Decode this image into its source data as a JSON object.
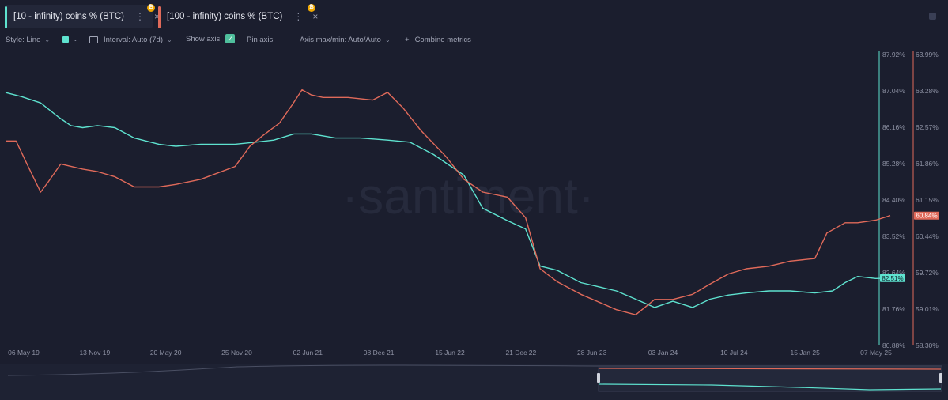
{
  "tabs": [
    {
      "label": "[10 - infinity) coins % (BTC)",
      "color": "#5ee2cf",
      "badge": "₿"
    },
    {
      "label": "[100 - infinity) coins % (BTC)",
      "color": "#e06a5a",
      "badge": "₿"
    }
  ],
  "tab_menu_icon": "⋮",
  "tab_close_icon": "×",
  "toolbar": {
    "style": "Style: Line",
    "interval": "Interval: Auto (7d)",
    "show_axis": "Show axis",
    "pin_axis": "Pin axis",
    "axis_maxmin": "Axis max/min: Auto/Auto",
    "combine": "Combine metrics",
    "check_mark": "✓",
    "plus": "+",
    "chevron": "⌄"
  },
  "watermark": "·santiment·",
  "colors": {
    "teal": "#5ee2cf",
    "red": "#e06a5a",
    "background": "#1b1e2e"
  },
  "chart_data": {
    "type": "line",
    "x_ticks": [
      "06 May 19",
      "13 Nov 19",
      "20 May 20",
      "25 Nov 20",
      "02 Jun 21",
      "08 Dec 21",
      "15 Jun 22",
      "21 Dec 22",
      "28 Jun 23",
      "03 Jan 24",
      "10 Jul 24",
      "15 Jan 25",
      "07 May 25"
    ],
    "left_axis": {
      "ticks": [
        "87.92%",
        "87.04%",
        "86.16%",
        "85.28%",
        "84.40%",
        "83.52%",
        "82.64%",
        "81.76%",
        "80.88%"
      ],
      "ylim": [
        80.88,
        87.92
      ]
    },
    "right_axis": {
      "ticks": [
        "63.99%",
        "63.28%",
        "62.57%",
        "61.86%",
        "61.15%",
        "60.44%",
        "59.72%",
        "59.01%",
        "58.30%"
      ],
      "ylim": [
        58.3,
        63.99
      ]
    },
    "series": [
      {
        "name": "[10 - infinity) coins % (BTC)",
        "color": "#5ee2cf",
        "axis": "left",
        "current_label": "82.51%",
        "x": [
          "2019-05-06",
          "2019-06-15",
          "2019-08-01",
          "2019-09-15",
          "2019-10-15",
          "2019-11-13",
          "2019-12-20",
          "2020-02-01",
          "2020-03-20",
          "2020-05-20",
          "2020-07-01",
          "2020-09-01",
          "2020-11-25",
          "2021-01-15",
          "2021-03-01",
          "2021-04-20",
          "2021-06-02",
          "2021-08-01",
          "2021-10-01",
          "2021-12-08",
          "2022-02-01",
          "2022-04-01",
          "2022-06-15",
          "2022-08-01",
          "2022-10-01",
          "2022-11-15",
          "2022-12-21",
          "2023-02-01",
          "2023-04-01",
          "2023-06-28",
          "2023-08-15",
          "2023-10-01",
          "2023-11-15",
          "2024-01-03",
          "2024-02-15",
          "2024-04-01",
          "2024-05-15",
          "2024-07-10",
          "2024-09-01",
          "2024-11-01",
          "2024-12-15",
          "2025-01-15",
          "2025-02-15",
          "2025-04-01",
          "2025-05-07"
        ],
        "values": [
          87.0,
          86.9,
          86.75,
          86.4,
          86.2,
          86.15,
          86.2,
          86.15,
          85.9,
          85.75,
          85.7,
          85.75,
          85.75,
          85.8,
          85.85,
          86.0,
          86.0,
          85.9,
          85.9,
          85.85,
          85.8,
          85.5,
          85.0,
          84.2,
          83.9,
          83.7,
          82.8,
          82.7,
          82.4,
          82.2,
          82.0,
          81.8,
          81.95,
          81.8,
          82.0,
          82.1,
          82.15,
          82.2,
          82.2,
          82.15,
          82.2,
          82.4,
          82.55,
          82.5,
          82.51
        ]
      },
      {
        "name": "[100 - infinity) coins % (BTC)",
        "color": "#e06a5a",
        "axis": "right",
        "current_label": "60.84%",
        "x": [
          "2019-05-06",
          "2019-06-01",
          "2019-07-01",
          "2019-08-01",
          "2019-08-20",
          "2019-09-20",
          "2019-11-13",
          "2019-12-20",
          "2020-02-01",
          "2020-03-20",
          "2020-05-20",
          "2020-07-01",
          "2020-09-01",
          "2020-11-25",
          "2021-01-01",
          "2021-02-01",
          "2021-03-15",
          "2021-04-15",
          "2021-05-10",
          "2021-06-02",
          "2021-07-01",
          "2021-09-01",
          "2021-11-01",
          "2021-12-08",
          "2022-01-15",
          "2022-03-01",
          "2022-05-01",
          "2022-06-15",
          "2022-08-01",
          "2022-10-01",
          "2022-11-15",
          "2022-12-21",
          "2023-02-01",
          "2023-04-01",
          "2023-06-28",
          "2023-08-15",
          "2023-10-01",
          "2023-11-15",
          "2024-01-03",
          "2024-02-15",
          "2024-04-01",
          "2024-05-15",
          "2024-07-10",
          "2024-09-01",
          "2024-11-01",
          "2024-12-01",
          "2025-01-15",
          "2025-02-15",
          "2025-04-01",
          "2025-05-07"
        ],
        "values": [
          62.3,
          62.3,
          61.8,
          61.3,
          61.5,
          61.85,
          61.75,
          61.7,
          61.6,
          61.4,
          61.4,
          61.45,
          61.55,
          61.8,
          62.2,
          62.4,
          62.65,
          63.0,
          63.3,
          63.2,
          63.15,
          63.15,
          63.1,
          63.25,
          62.95,
          62.5,
          62.0,
          61.55,
          61.3,
          61.2,
          60.8,
          59.8,
          59.55,
          59.3,
          59.0,
          58.9,
          59.2,
          59.2,
          59.3,
          59.5,
          59.7,
          59.8,
          59.85,
          59.95,
          60.0,
          60.5,
          60.7,
          60.7,
          60.75,
          60.84
        ]
      }
    ]
  }
}
